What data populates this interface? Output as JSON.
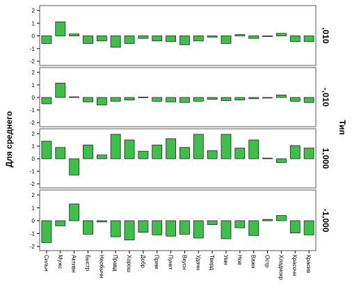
{
  "chart_data": {
    "type": "bar",
    "ylabel": "Для среднего",
    "facet_label": "Тип",
    "categories": [
      "Сильн",
      "Мужс",
      "Активн",
      "Быстр",
      "Необычн",
      "Правд",
      "Хорош",
      "Добр",
      "Прям",
      "Пункт",
      "Вкусн",
      "Удачн",
      "Тверд",
      "Умн",
      "Нов",
      "Важн",
      "Остр",
      "Хладнокр",
      "Красочн",
      "Красив"
    ],
    "ylim": [
      -2,
      2
    ],
    "yticks": [
      "2",
      "1",
      "0",
      "-1",
      "-2"
    ],
    "bar_color": "#3dbf4a",
    "panels": [
      {
        "name": ",010",
        "values": [
          -0.6,
          1.1,
          0.15,
          -0.6,
          -0.4,
          -0.9,
          -0.6,
          -0.2,
          -0.4,
          -0.45,
          -0.7,
          -0.4,
          -0.1,
          -0.6,
          0.1,
          -0.2,
          -0.05,
          0.2,
          -0.45,
          -0.45
        ]
      },
      {
        "name": "-,010",
        "values": [
          -0.5,
          1.15,
          0.05,
          -0.35,
          -0.6,
          -0.3,
          -0.2,
          0.03,
          -0.3,
          -0.35,
          -0.4,
          -0.3,
          -0.15,
          -0.25,
          -0.2,
          -0.1,
          -0.05,
          0.2,
          -0.3,
          -0.4
        ]
      },
      {
        "name": "1,000",
        "values": [
          1.4,
          0.9,
          -1.3,
          1.1,
          0.3,
          1.95,
          1.5,
          0.6,
          1.1,
          1.6,
          0.9,
          1.95,
          0.65,
          1.95,
          0.85,
          1.5,
          0.05,
          -0.3,
          1.05,
          0.85
        ]
      },
      {
        "name": "-1,000",
        "values": [
          -1.7,
          -0.4,
          1.3,
          -1.05,
          -0.1,
          -1.25,
          -1.5,
          -0.9,
          -1.1,
          -1.2,
          -1.05,
          -1.35,
          -0.3,
          -1.4,
          -0.55,
          -1.15,
          0.1,
          0.4,
          -0.95,
          -1.1
        ]
      }
    ]
  }
}
